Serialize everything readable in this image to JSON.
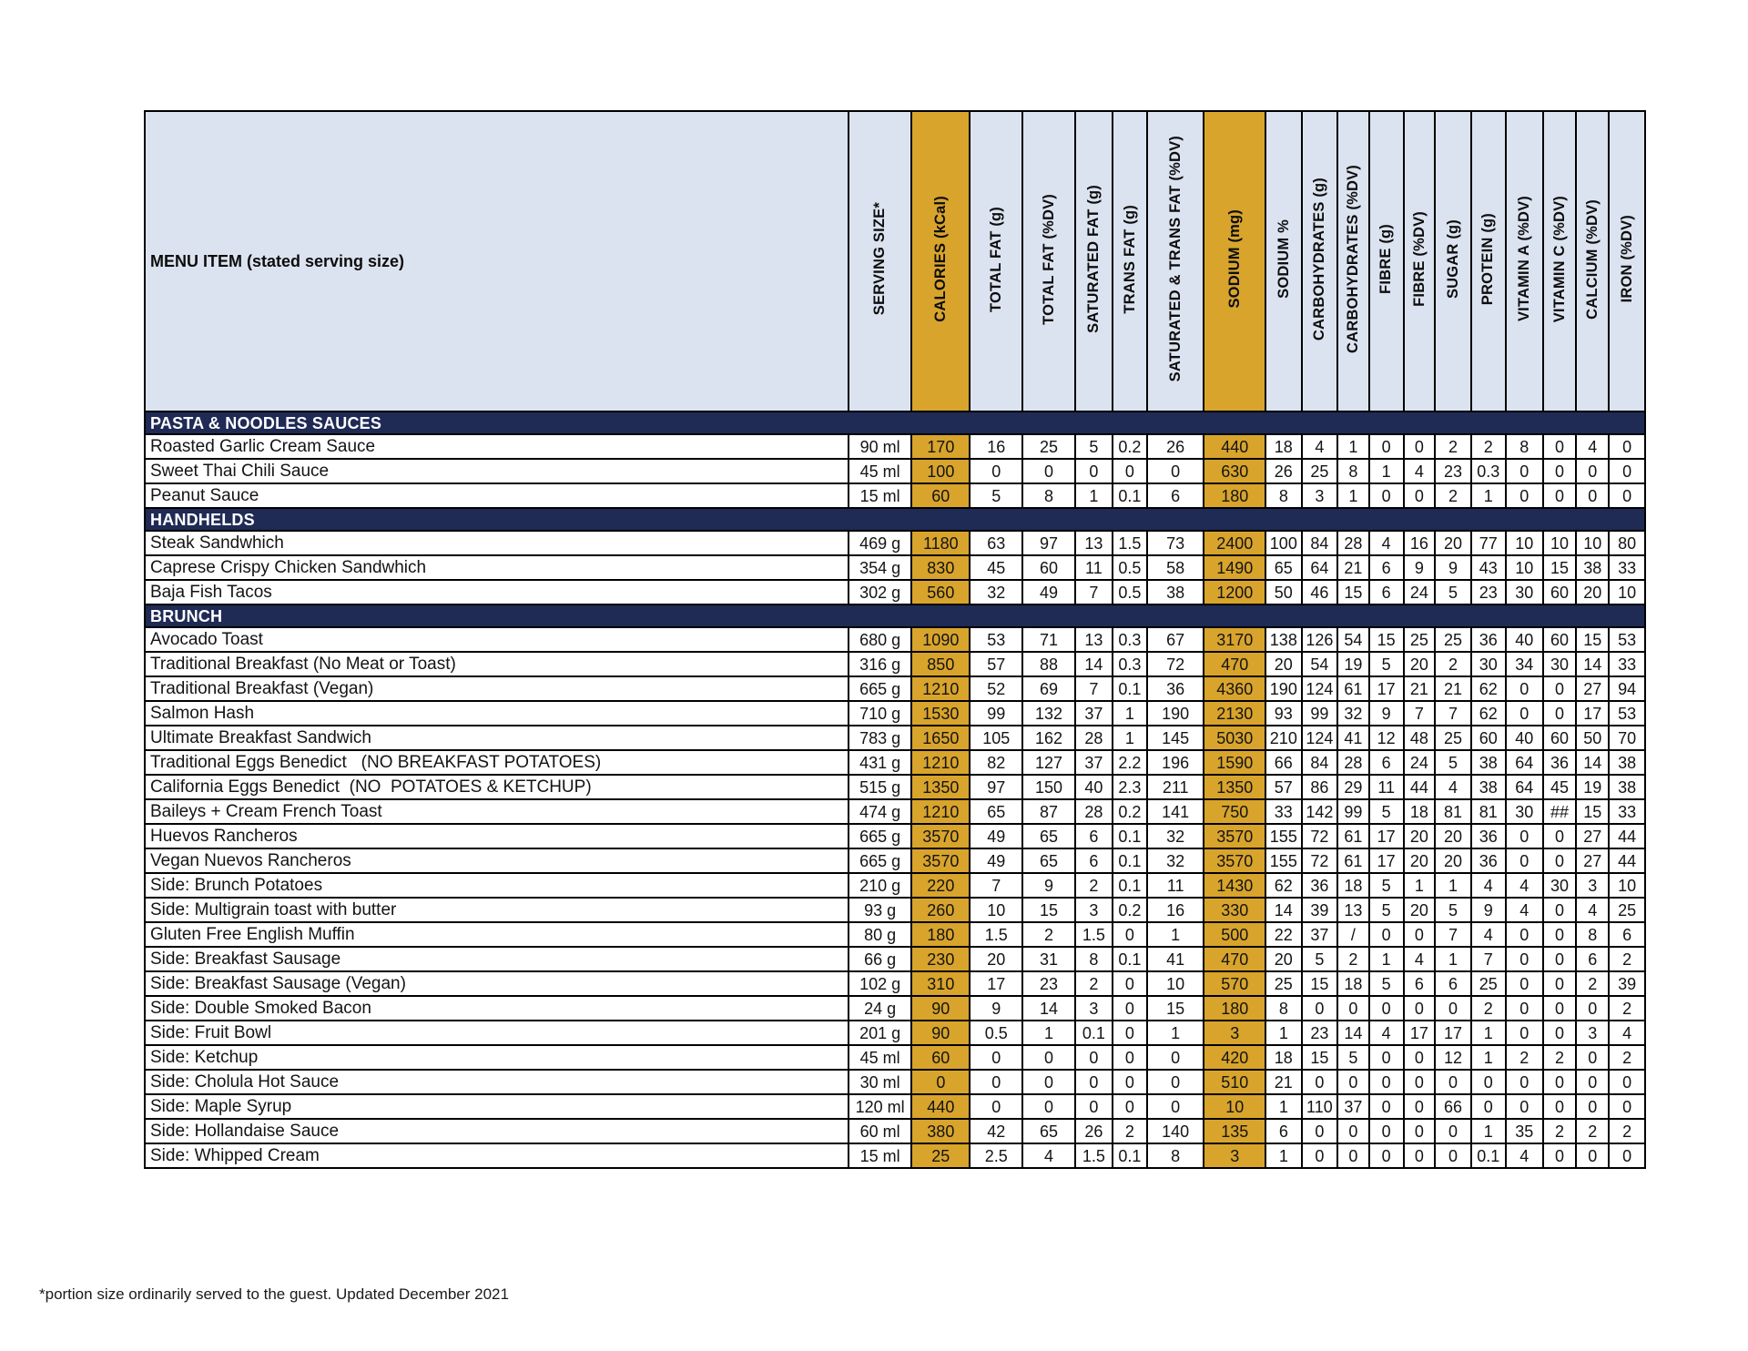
{
  "table": {
    "menu_header": "MENU ITEM (stated serving size)",
    "columns": [
      "SERVING SIZE*",
      "CALORIES (kCal)",
      "TOTAL FAT (g)",
      "TOTAL FAT (%DV)",
      "SATURATED FAT (g)",
      "TRANS FAT (g)",
      "SATURATED & TRANS FAT (%DV)",
      "SODIUM (mg)",
      "SODIUM %",
      "CARBOHYDRATES (g)",
      "CARBOHYDRATES (%DV)",
      "FIBRE (g)",
      "FIBRE (%DV)",
      "SUGAR (g)",
      "PROTEIN (g)",
      "VITAMIN A (%DV)",
      "VITAMIN C (%DV)",
      "CALCIUM (%DV)",
      "IRON (%DV)"
    ],
    "highlight_columns": [
      1,
      7
    ]
  },
  "sections": [
    {
      "title": "PASTA & NOODLES SAUCES",
      "rows": [
        {
          "name": "Roasted Garlic Cream Sauce",
          "values": [
            "90 ml",
            "170",
            "16",
            "25",
            "5",
            "0.2",
            "26",
            "440",
            "18",
            "4",
            "1",
            "0",
            "0",
            "2",
            "2",
            "8",
            "0",
            "4",
            "0"
          ]
        },
        {
          "name": "Sweet Thai Chili Sauce",
          "values": [
            "45 ml",
            "100",
            "0",
            "0",
            "0",
            "0",
            "0",
            "630",
            "26",
            "25",
            "8",
            "1",
            "4",
            "23",
            "0.3",
            "0",
            "0",
            "0",
            "0"
          ]
        },
        {
          "name": "Peanut Sauce",
          "values": [
            "15 ml",
            "60",
            "5",
            "8",
            "1",
            "0.1",
            "6",
            "180",
            "8",
            "3",
            "1",
            "0",
            "0",
            "2",
            "1",
            "0",
            "0",
            "0",
            "0"
          ]
        }
      ]
    },
    {
      "title": "HANDHELDS",
      "rows": [
        {
          "name": "Steak Sandwhich",
          "values": [
            "469 g",
            "1180",
            "63",
            "97",
            "13",
            "1.5",
            "73",
            "2400",
            "100",
            "84",
            "28",
            "4",
            "16",
            "20",
            "77",
            "10",
            "10",
            "10",
            "80"
          ]
        },
        {
          "name": "Caprese Crispy Chicken Sandwhich",
          "values": [
            "354 g",
            "830",
            "45",
            "60",
            "11",
            "0.5",
            "58",
            "1490",
            "65",
            "64",
            "21",
            "6",
            "9",
            "9",
            "43",
            "10",
            "15",
            "38",
            "33"
          ]
        },
        {
          "name": "Baja Fish Tacos",
          "values": [
            "302 g",
            "560",
            "32",
            "49",
            "7",
            "0.5",
            "38",
            "1200",
            "50",
            "46",
            "15",
            "6",
            "24",
            "5",
            "23",
            "30",
            "60",
            "20",
            "10"
          ]
        }
      ]
    },
    {
      "title": "BRUNCH",
      "rows": [
        {
          "name": "Avocado Toast",
          "values": [
            "680 g",
            "1090",
            "53",
            "71",
            "13",
            "0.3",
            "67",
            "3170",
            "138",
            "126",
            "54",
            "15",
            "25",
            "25",
            "36",
            "40",
            "60",
            "15",
            "53"
          ]
        },
        {
          "name": "Traditional Breakfast (No Meat or Toast)",
          "values": [
            "316 g",
            "850",
            "57",
            "88",
            "14",
            "0.3",
            "72",
            "470",
            "20",
            "54",
            "19",
            "5",
            "20",
            "2",
            "30",
            "34",
            "30",
            "14",
            "33"
          ]
        },
        {
          "name": "Traditional Breakfast (Vegan)",
          "values": [
            "665 g",
            "1210",
            "52",
            "69",
            "7",
            "0.1",
            "36",
            "4360",
            "190",
            "124",
            "61",
            "17",
            "21",
            "21",
            "62",
            "0",
            "0",
            "27",
            "94"
          ]
        },
        {
          "name": "Salmon Hash",
          "values": [
            "710 g",
            "1530",
            "99",
            "132",
            "37",
            "1",
            "190",
            "2130",
            "93",
            "99",
            "32",
            "9",
            "7",
            "7",
            "62",
            "0",
            "0",
            "17",
            "53"
          ]
        },
        {
          "name": "Ultimate Breakfast Sandwich",
          "values": [
            "783 g",
            "1650",
            "105",
            "162",
            "28",
            "1",
            "145",
            "5030",
            "210",
            "124",
            "41",
            "12",
            "48",
            "25",
            "60",
            "40",
            "60",
            "50",
            "70"
          ]
        },
        {
          "name": "Traditional Eggs Benedict   (NO BREAKFAST POTATOES)",
          "values": [
            "431 g",
            "1210",
            "82",
            "127",
            "37",
            "2.2",
            "196",
            "1590",
            "66",
            "84",
            "28",
            "6",
            "24",
            "5",
            "38",
            "64",
            "36",
            "14",
            "38"
          ]
        },
        {
          "name": "California Eggs Benedict  (NO  POTATOES & KETCHUP)",
          "values": [
            "515 g",
            "1350",
            "97",
            "150",
            "40",
            "2.3",
            "211",
            "1350",
            "57",
            "86",
            "29",
            "11",
            "44",
            "4",
            "38",
            "64",
            "45",
            "19",
            "38"
          ]
        },
        {
          "name": "Baileys + Cream French Toast",
          "values": [
            "474 g",
            "1210",
            "65",
            "87",
            "28",
            "0.2",
            "141",
            "750",
            "33",
            "142",
            "99",
            "5",
            "18",
            "81",
            "81",
            "30",
            "##",
            "15",
            "33"
          ]
        },
        {
          "name": "Huevos Rancheros",
          "values": [
            "665 g",
            "3570",
            "49",
            "65",
            "6",
            "0.1",
            "32",
            "3570",
            "155",
            "72",
            "61",
            "17",
            "20",
            "20",
            "36",
            "0",
            "0",
            "27",
            "44"
          ]
        },
        {
          "name": "Vegan Nuevos Rancheros",
          "values": [
            "665 g",
            "3570",
            "49",
            "65",
            "6",
            "0.1",
            "32",
            "3570",
            "155",
            "72",
            "61",
            "17",
            "20",
            "20",
            "36",
            "0",
            "0",
            "27",
            "44"
          ]
        },
        {
          "name": "Side: Brunch Potatoes",
          "values": [
            "210 g",
            "220",
            "7",
            "9",
            "2",
            "0.1",
            "11",
            "1430",
            "62",
            "36",
            "18",
            "5",
            "1",
            "1",
            "4",
            "4",
            "30",
            "3",
            "10"
          ]
        },
        {
          "name": "Side: Multigrain toast with butter",
          "values": [
            "93 g",
            "260",
            "10",
            "15",
            "3",
            "0.2",
            "16",
            "330",
            "14",
            "39",
            "13",
            "5",
            "20",
            "5",
            "9",
            "4",
            "0",
            "4",
            "25"
          ]
        },
        {
          "name": "Gluten Free English Muffin",
          "values": [
            "80 g",
            "180",
            "1.5",
            "2",
            "1.5",
            "0",
            "1",
            "500",
            "22",
            "37",
            "/",
            "0",
            "0",
            "7",
            "4",
            "0",
            "0",
            "8",
            "6"
          ]
        },
        {
          "name": "Side: Breakfast Sausage",
          "values": [
            "66 g",
            "230",
            "20",
            "31",
            "8",
            "0.1",
            "41",
            "470",
            "20",
            "5",
            "2",
            "1",
            "4",
            "1",
            "7",
            "0",
            "0",
            "6",
            "2"
          ]
        },
        {
          "name": "Side: Breakfast Sausage (Vegan)",
          "values": [
            "102 g",
            "310",
            "17",
            "23",
            "2",
            "0",
            "10",
            "570",
            "25",
            "15",
            "18",
            "5",
            "6",
            "6",
            "25",
            "0",
            "0",
            "2",
            "39"
          ]
        },
        {
          "name": "Side: Double Smoked Bacon",
          "values": [
            "24 g",
            "90",
            "9",
            "14",
            "3",
            "0",
            "15",
            "180",
            "8",
            "0",
            "0",
            "0",
            "0",
            "0",
            "2",
            "0",
            "0",
            "0",
            "2"
          ]
        },
        {
          "name": "Side: Fruit Bowl",
          "values": [
            "201 g",
            "90",
            "0.5",
            "1",
            "0.1",
            "0",
            "1",
            "3",
            "1",
            "23",
            "14",
            "4",
            "17",
            "17",
            "1",
            "0",
            "0",
            "3",
            "4"
          ]
        },
        {
          "name": "Side: Ketchup",
          "values": [
            "45 ml",
            "60",
            "0",
            "0",
            "0",
            "0",
            "0",
            "420",
            "18",
            "15",
            "5",
            "0",
            "0",
            "12",
            "1",
            "2",
            "2",
            "0",
            "2"
          ]
        },
        {
          "name": "Side: Cholula Hot Sauce",
          "values": [
            "30 ml",
            "0",
            "0",
            "0",
            "0",
            "0",
            "0",
            "510",
            "21",
            "0",
            "0",
            "0",
            "0",
            "0",
            "0",
            "0",
            "0",
            "0",
            "0"
          ]
        },
        {
          "name": "Side: Maple Syrup",
          "values": [
            "120 ml",
            "440",
            "0",
            "0",
            "0",
            "0",
            "0",
            "10",
            "1",
            "110",
            "37",
            "0",
            "0",
            "66",
            "0",
            "0",
            "0",
            "0",
            "0"
          ]
        },
        {
          "name": "Side: Hollandaise Sauce",
          "values": [
            "60 ml",
            "380",
            "42",
            "65",
            "26",
            "2",
            "140",
            "135",
            "6",
            "0",
            "0",
            "0",
            "0",
            "0",
            "1",
            "35",
            "2",
            "2",
            "2"
          ]
        },
        {
          "name": "Side: Whipped Cream",
          "values": [
            "15 ml",
            "25",
            "2.5",
            "4",
            "1.5",
            "0.1",
            "8",
            "3",
            "1",
            "0",
            "0",
            "0",
            "0",
            "0",
            "0.1",
            "4",
            "0",
            "0",
            "0"
          ]
        }
      ]
    }
  ],
  "footer": {
    "note": "*portion size ordinarily served to the guest. Updated December 2021"
  },
  "colors": {
    "highlight_orange": "#D8A42C",
    "section_navy": "#1F2A55",
    "header_blue": "#DCE3F0"
  }
}
